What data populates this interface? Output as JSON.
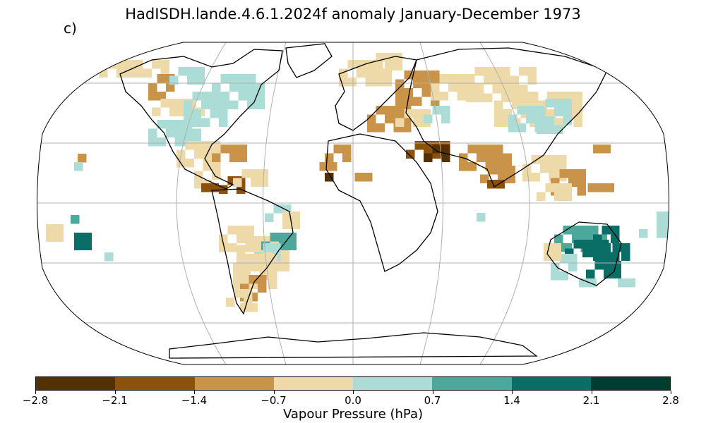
{
  "title": "HadISDH.lande.4.6.1.2024f anomaly January-December 1973",
  "panel_label": "c)",
  "colorbar": {
    "label": "Vapour Pressure (hPa)",
    "ticks": [
      "−2.8",
      "−2.1",
      "−1.4",
      "−0.7",
      "0.0",
      "0.7",
      "1.4",
      "2.1",
      "2.8"
    ],
    "colors": [
      "#543005",
      "#8c510a",
      "#c99449",
      "#eed9a9",
      "#acdcd6",
      "#4ba89b",
      "#0b6e66",
      "#003c30"
    ]
  },
  "map": {
    "projection": "Robinson",
    "graticule": true,
    "land_outline": "#000000"
  }
}
